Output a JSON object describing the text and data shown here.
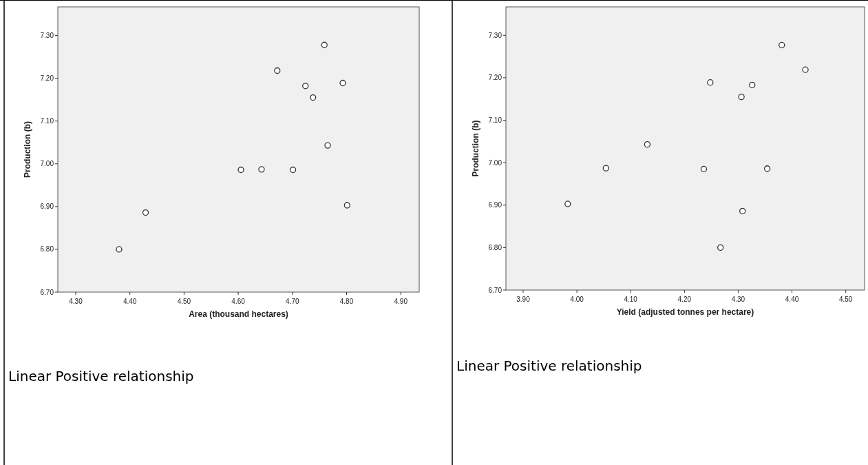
{
  "chart_data": [
    {
      "type": "scatter",
      "xlabel": "Area (thousand hectares)",
      "ylabel": "Production (b)",
      "marker": "circle",
      "xlim": [
        4.267,
        4.934
      ],
      "ylim": [
        6.7,
        7.367
      ],
      "xticks": [
        {
          "value": 4.3,
          "label": "4.30"
        },
        {
          "value": 4.4,
          "label": "4.40"
        },
        {
          "value": 4.5,
          "label": "4.50"
        },
        {
          "value": 4.6,
          "label": "4.60"
        },
        {
          "value": 4.7,
          "label": "4.70"
        },
        {
          "value": 4.8,
          "label": "4.80"
        },
        {
          "value": 4.9,
          "label": "4.90"
        }
      ],
      "yticks": [
        {
          "value": 6.7,
          "label": "6.70"
        },
        {
          "value": 6.8,
          "label": "6.80"
        },
        {
          "value": 6.9,
          "label": "6.90"
        },
        {
          "value": 7.0,
          "label": "7.00"
        },
        {
          "value": 7.1,
          "label": "7.10"
        },
        {
          "value": 7.2,
          "label": "7.20"
        },
        {
          "value": 7.3,
          "label": "7.30"
        }
      ],
      "series": [
        {
          "color": "#333333",
          "x": [
            4.38,
            4.429,
            4.605,
            4.643,
            4.672,
            4.701,
            4.724,
            4.738,
            4.759,
            4.765,
            4.793,
            4.801
          ],
          "values": [
            6.8,
            6.886,
            6.986,
            6.987,
            7.218,
            6.986,
            7.182,
            7.155,
            7.278,
            7.043,
            7.189,
            6.903
          ]
        }
      ],
      "annotations": [
        "Linear Positive relationship"
      ]
    },
    {
      "type": "scatter",
      "xlabel": "Yield (adjusted tonnes per hectare)",
      "ylabel": "Production (b)",
      "marker": "circle",
      "xlim": [
        3.868,
        4.535
      ],
      "ylim": [
        6.7,
        7.367
      ],
      "xticks": [
        {
          "value": 3.9,
          "label": "3.90"
        },
        {
          "value": 4.0,
          "label": "4.00"
        },
        {
          "value": 4.1,
          "label": "4.10"
        },
        {
          "value": 4.2,
          "label": "4.20"
        },
        {
          "value": 4.3,
          "label": "4.30"
        },
        {
          "value": 4.4,
          "label": "4.40"
        },
        {
          "value": 4.5,
          "label": "4.50"
        }
      ],
      "yticks": [
        {
          "value": 6.7,
          "label": "6.70"
        },
        {
          "value": 6.8,
          "label": "6.80"
        },
        {
          "value": 6.9,
          "label": "6.90"
        },
        {
          "value": 7.0,
          "label": "7.00"
        },
        {
          "value": 7.1,
          "label": "7.10"
        },
        {
          "value": 7.2,
          "label": "7.20"
        },
        {
          "value": 7.3,
          "label": "7.30"
        }
      ],
      "series": [
        {
          "color": "#333333",
          "x": [
            3.983,
            4.054,
            4.131,
            4.236,
            4.248,
            4.267,
            4.306,
            4.308,
            4.326,
            4.354,
            4.381,
            4.425
          ],
          "values": [
            6.903,
            6.987,
            7.043,
            6.985,
            7.189,
            6.8,
            7.155,
            6.886,
            7.183,
            6.986,
            7.277,
            7.219
          ]
        }
      ],
      "annotations": [
        "Linear Positive relationship"
      ]
    }
  ]
}
